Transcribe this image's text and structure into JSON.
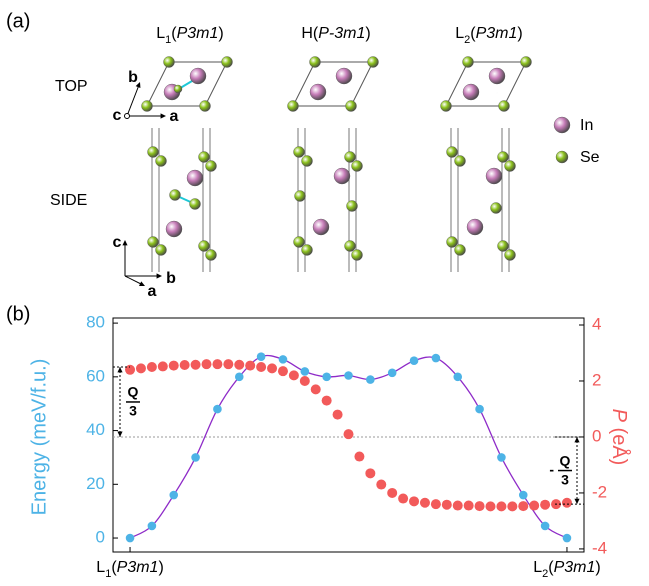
{
  "panel_a": {
    "label": "(a)",
    "structures": [
      {
        "label": [
          {
            "t": "L"
          },
          {
            "t": "1",
            "sub": true
          },
          {
            "t": "("
          },
          {
            "t": "P3m1",
            "italic": true
          },
          {
            "t": ")"
          }
        ]
      },
      {
        "label": [
          {
            "t": "H("
          },
          {
            "t": "P-3m1",
            "italic": true
          },
          {
            "t": ")"
          }
        ]
      },
      {
        "label": [
          {
            "t": "L"
          },
          {
            "t": "2",
            "sub": true
          },
          {
            "t": "("
          },
          {
            "t": "P3m1",
            "italic": true
          },
          {
            "t": ")"
          }
        ]
      }
    ],
    "rows": [
      "TOP",
      "SIDE"
    ],
    "legend": [
      {
        "name": "In",
        "color": "#c77db9"
      },
      {
        "name": "Se",
        "color": "#8cc21c"
      }
    ],
    "axes_top": [
      "b",
      "c",
      "a"
    ],
    "axes_side": [
      "c",
      "b",
      "a"
    ]
  },
  "chart_data": {
    "type": "line",
    "label": "(b)",
    "ylabel": "Energy (meV/f.u.)",
    "ylabel_color": "#4db3e6",
    "y2label": [
      {
        "t": "P",
        "italic": true
      },
      {
        "t": " (eÅ)"
      }
    ],
    "y2label_color": "#f25a5a",
    "xlim": [
      -0.78,
      20.78
    ],
    "xticks": [
      {
        "value": 0,
        "label": [
          {
            "t": "L"
          },
          {
            "t": "1",
            "sub": true
          },
          {
            "t": "("
          },
          {
            "t": "P3m1",
            "italic": true
          },
          {
            "t": ")"
          }
        ]
      },
      {
        "value": 20,
        "label": [
          {
            "t": "L"
          },
          {
            "t": "2",
            "sub": true
          },
          {
            "t": "("
          },
          {
            "t": "P3m1",
            "italic": true
          },
          {
            "t": ")"
          }
        ]
      }
    ],
    "ylim": [
      -5.2,
      81.9
    ],
    "yticks": [
      0,
      20,
      40,
      60,
      80
    ],
    "y2lim": [
      -4.11,
      4.25
    ],
    "y2ticks": [
      -4,
      -2,
      0,
      2,
      4
    ],
    "reference_y2": 0,
    "series": [
      {
        "color": "#4db3e6",
        "line_color": "#8e2bc8",
        "x": [
          0,
          1,
          2,
          3,
          4,
          5,
          6,
          7,
          8,
          9,
          10,
          11,
          12,
          13,
          14,
          15,
          16,
          17,
          18,
          19,
          20
        ],
        "values": [
          0,
          4.5,
          16,
          30,
          48,
          60,
          67.5,
          66.5,
          62,
          60,
          60.5,
          59,
          61.5,
          66,
          67,
          60,
          48,
          30,
          16,
          4.5,
          0
        ]
      },
      {
        "color": "#f25a5a",
        "axis": "y2",
        "x": [
          0,
          0.5,
          1,
          1.5,
          2,
          2.5,
          3,
          3.5,
          4,
          4.5,
          5,
          5.5,
          6,
          6.5,
          7,
          7.5,
          8,
          8.5,
          9,
          9.5,
          10,
          10.5,
          11,
          11.5,
          12,
          12.5,
          13,
          13.5,
          14,
          14.5,
          15,
          15.5,
          16,
          16.5,
          17,
          17.5,
          18,
          18.5,
          19,
          19.5,
          20
        ],
        "values": [
          2.4,
          2.45,
          2.5,
          2.52,
          2.55,
          2.57,
          2.58,
          2.6,
          2.6,
          2.6,
          2.58,
          2.55,
          2.5,
          2.45,
          2.35,
          2.2,
          2.0,
          1.7,
          1.3,
          0.8,
          0.1,
          -0.7,
          -1.3,
          -1.7,
          -2.0,
          -2.2,
          -2.3,
          -2.35,
          -2.4,
          -2.42,
          -2.45,
          -2.45,
          -2.47,
          -2.48,
          -2.48,
          -2.48,
          -2.47,
          -2.45,
          -2.42,
          -2.4,
          -2.35
        ]
      }
    ],
    "annotations": [
      {
        "side": "left",
        "numerator": "Q",
        "denominator": "3",
        "y2": [
          0,
          2.5
        ]
      },
      {
        "side": "right",
        "sign": "-",
        "numerator": "Q",
        "denominator": "3",
        "y2": [
          0,
          -2.4
        ]
      }
    ]
  }
}
